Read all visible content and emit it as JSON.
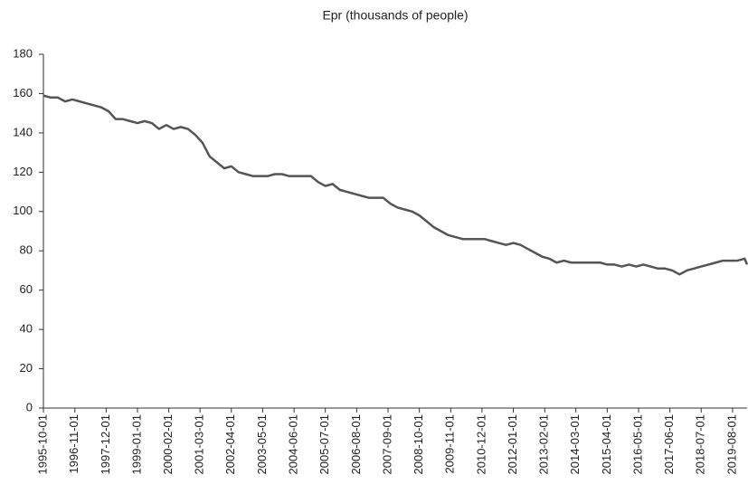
{
  "chart_data": {
    "type": "line",
    "title": "Epr (thousands of people)",
    "x": [
      "1995-10-01",
      "1996-01-01",
      "1996-04-01",
      "1996-07-01",
      "1996-10-01",
      "1997-01-01",
      "1997-04-01",
      "1997-07-01",
      "1997-10-01",
      "1998-01-01",
      "1998-04-01",
      "1998-07-01",
      "1998-10-01",
      "1999-01-01",
      "1999-04-01",
      "1999-07-01",
      "1999-10-01",
      "2000-01-01",
      "2000-04-01",
      "2000-07-01",
      "2000-10-01",
      "2001-01-01",
      "2001-04-01",
      "2001-07-01",
      "2001-10-01",
      "2002-01-01",
      "2002-04-01",
      "2002-07-01",
      "2002-10-01",
      "2003-01-01",
      "2003-04-01",
      "2003-07-01",
      "2003-10-01",
      "2004-01-01",
      "2004-04-01",
      "2004-07-01",
      "2004-10-01",
      "2005-01-01",
      "2005-04-01",
      "2005-07-01",
      "2005-10-01",
      "2006-01-01",
      "2006-04-01",
      "2006-07-01",
      "2006-10-01",
      "2007-01-01",
      "2007-04-01",
      "2007-07-01",
      "2007-10-01",
      "2008-01-01",
      "2008-04-01",
      "2008-07-01",
      "2008-10-01",
      "2009-01-01",
      "2009-04-01",
      "2009-07-01",
      "2009-10-01",
      "2010-01-01",
      "2010-04-01",
      "2010-07-01",
      "2010-10-01",
      "2011-01-01",
      "2011-04-01",
      "2011-07-01",
      "2011-10-01",
      "2012-01-01",
      "2012-04-01",
      "2012-07-01",
      "2012-10-01",
      "2013-01-01",
      "2013-04-01",
      "2013-07-01",
      "2013-10-01",
      "2014-01-01",
      "2014-04-01",
      "2014-07-01",
      "2014-10-01",
      "2015-01-01",
      "2015-04-01",
      "2015-07-01",
      "2015-10-01",
      "2016-01-01",
      "2016-04-01",
      "2016-07-01",
      "2016-10-01",
      "2017-01-01",
      "2017-04-01",
      "2017-07-01",
      "2017-10-01",
      "2018-01-01",
      "2018-04-01",
      "2018-07-01",
      "2018-10-01",
      "2019-01-01",
      "2019-04-01",
      "2019-07-01",
      "2019-10-01",
      "2020-01-01",
      "2020-02-01"
    ],
    "values": [
      159,
      158,
      158,
      156,
      157,
      156,
      155,
      154,
      153,
      151,
      147,
      147,
      146,
      145,
      146,
      145,
      142,
      144,
      142,
      143,
      142,
      139,
      135,
      128,
      125,
      122,
      123,
      120,
      119,
      118,
      118,
      118,
      119,
      119,
      118,
      118,
      118,
      118,
      115,
      113,
      114,
      111,
      110,
      109,
      108,
      107,
      107,
      107,
      104,
      102,
      101,
      100,
      98,
      95,
      92,
      90,
      88,
      87,
      86,
      86,
      86,
      86,
      85,
      84,
      83,
      84,
      83,
      81,
      79,
      77,
      76,
      74,
      75,
      74,
      74,
      74,
      74,
      74,
      73,
      73,
      72,
      73,
      72,
      73,
      72,
      71,
      71,
      70,
      68,
      70,
      71,
      72,
      73,
      74,
      75,
      75,
      75,
      76,
      73
    ],
    "color": "#555555",
    "xlim": [
      "1995-10-01",
      "2020-02-01"
    ],
    "xticks": [
      "1995-10-01",
      "1996-11-01",
      "1997-12-01",
      "1999-01-01",
      "2000-02-01",
      "2001-03-01",
      "2002-04-01",
      "2003-05-01",
      "2004-06-01",
      "2005-07-01",
      "2006-08-01",
      "2007-09-01",
      "2008-10-01",
      "2009-11-01",
      "2010-12-01",
      "2012-01-01",
      "2013-02-01",
      "2014-03-01",
      "2015-04-01",
      "2016-05-01",
      "2017-06-01",
      "2018-07-01",
      "2019-08-01"
    ],
    "ylim": [
      0,
      180
    ],
    "yticks": [
      0,
      20,
      40,
      60,
      80,
      100,
      120,
      140,
      160,
      180
    ]
  }
}
